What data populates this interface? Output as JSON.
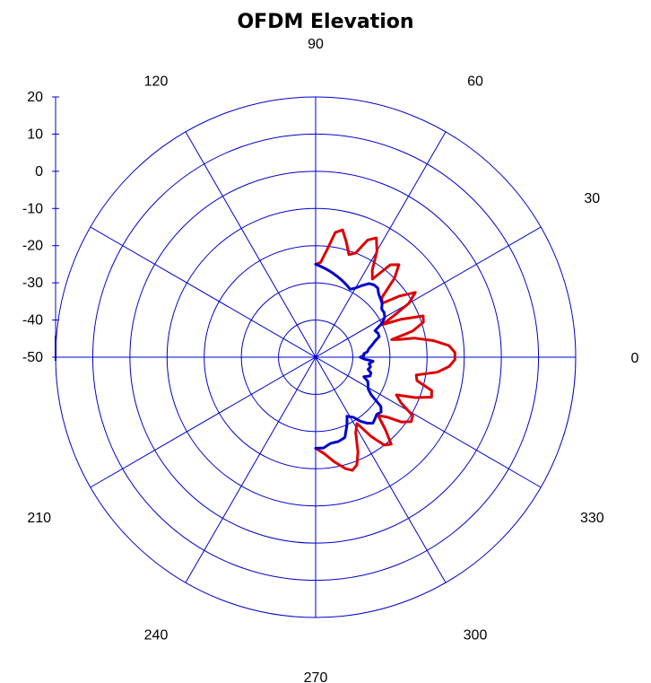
{
  "chart_data": {
    "type": "polar-line",
    "title": "OFDM Elevation",
    "angle_unit": "degrees",
    "angle_direction": "counterclockwise, 0 at right",
    "angular_ticks": [
      0,
      30,
      60,
      90,
      120,
      210,
      240,
      270,
      300,
      330
    ],
    "angular_gridlines_every": 30,
    "radial_range": [
      -50,
      20
    ],
    "radial_ticks": [
      20,
      10,
      0,
      -10,
      -20,
      -30,
      -40,
      -50
    ],
    "radial_gridlines_every": 10,
    "grid": true,
    "grid_color": "#0000cc",
    "series": [
      {
        "color": "#dd0000",
        "points": [
          [
            -90,
            -25.5
          ],
          [
            -85,
            -24
          ],
          [
            -80,
            -21.5
          ],
          [
            -75,
            -19
          ],
          [
            -72,
            -18
          ],
          [
            -69,
            -19
          ],
          [
            -66,
            -22
          ],
          [
            -62,
            -27
          ],
          [
            -58,
            -29
          ],
          [
            -55,
            -24
          ],
          [
            -52,
            -20
          ],
          [
            -49,
            -19
          ],
          [
            -46,
            -23
          ],
          [
            -43,
            -27
          ],
          [
            -40,
            -25
          ],
          [
            -37,
            -21
          ],
          [
            -34,
            -19
          ],
          [
            -31,
            -19.5
          ],
          [
            -28,
            -24
          ],
          [
            -25,
            -26
          ],
          [
            -22,
            -21
          ],
          [
            -19,
            -17
          ],
          [
            -16,
            -17.5
          ],
          [
            -13,
            -22
          ],
          [
            -10,
            -22.5
          ],
          [
            -7,
            -17
          ],
          [
            -4,
            -14
          ],
          [
            -1,
            -12.5
          ],
          [
            2,
            -12.5
          ],
          [
            5,
            -14
          ],
          [
            8,
            -18
          ],
          [
            11,
            -23
          ],
          [
            12,
            -27
          ],
          [
            13,
            -29
          ],
          [
            15,
            -23
          ],
          [
            18,
            -19.5
          ],
          [
            21,
            -19
          ],
          [
            24,
            -25
          ],
          [
            26,
            -30
          ],
          [
            28,
            -26
          ],
          [
            30,
            -21
          ],
          [
            33,
            -18
          ],
          [
            36,
            -22
          ],
          [
            39,
            -27
          ],
          [
            42,
            -26
          ],
          [
            45,
            -20
          ],
          [
            48,
            -16.5
          ],
          [
            51,
            -18
          ],
          [
            54,
            -24
          ],
          [
            57,
            -22
          ],
          [
            60,
            -17
          ],
          [
            63,
            -14
          ],
          [
            66,
            -15.5
          ],
          [
            69,
            -20
          ],
          [
            72,
            -21
          ],
          [
            75,
            -18
          ],
          [
            78,
            -15
          ],
          [
            81,
            -16
          ],
          [
            84,
            -21
          ],
          [
            87,
            -24.5
          ],
          [
            90,
            -25
          ]
        ]
      },
      {
        "color": "#0000cc",
        "points": [
          [
            -90,
            -25.5
          ],
          [
            -85,
            -25.5
          ],
          [
            -80,
            -26.5
          ],
          [
            -75,
            -26.5
          ],
          [
            -70,
            -27
          ],
          [
            -65,
            -30
          ],
          [
            -62,
            -32
          ],
          [
            -58,
            -31
          ],
          [
            -55,
            -29
          ],
          [
            -52,
            -27.5
          ],
          [
            -49,
            -26.5
          ],
          [
            -46,
            -27
          ],
          [
            -43,
            -27.5
          ],
          [
            -40,
            -27
          ],
          [
            -37,
            -28
          ],
          [
            -34,
            -32
          ],
          [
            -31,
            -33.5
          ],
          [
            -28,
            -34
          ],
          [
            -25,
            -34.5
          ],
          [
            -22,
            -36
          ],
          [
            -19,
            -34.5
          ],
          [
            -16,
            -34.5
          ],
          [
            -13,
            -35.5
          ],
          [
            -10,
            -35
          ],
          [
            -7,
            -35.5
          ],
          [
            -4,
            -34.5
          ],
          [
            -2,
            -37
          ],
          [
            0,
            -38
          ],
          [
            2,
            -37
          ],
          [
            4,
            -37
          ],
          [
            6,
            -36
          ],
          [
            9,
            -35.5
          ],
          [
            12,
            -34.5
          ],
          [
            15,
            -33.5
          ],
          [
            18,
            -32
          ],
          [
            21,
            -32
          ],
          [
            24,
            -32.5
          ],
          [
            27,
            -30
          ],
          [
            30,
            -28.5
          ],
          [
            33,
            -28
          ],
          [
            36,
            -28
          ],
          [
            39,
            -27
          ],
          [
            42,
            -26.5
          ],
          [
            45,
            -26
          ],
          [
            48,
            -25
          ],
          [
            51,
            -25
          ],
          [
            54,
            -25.5
          ],
          [
            57,
            -27
          ],
          [
            60,
            -28.5
          ],
          [
            63,
            -29.5
          ],
          [
            66,
            -29
          ],
          [
            69,
            -28.5
          ],
          [
            72,
            -28
          ],
          [
            75,
            -27.5
          ],
          [
            78,
            -27
          ],
          [
            81,
            -26.5
          ],
          [
            84,
            -26
          ],
          [
            87,
            -25.5
          ],
          [
            90,
            -25
          ]
        ]
      }
    ]
  }
}
